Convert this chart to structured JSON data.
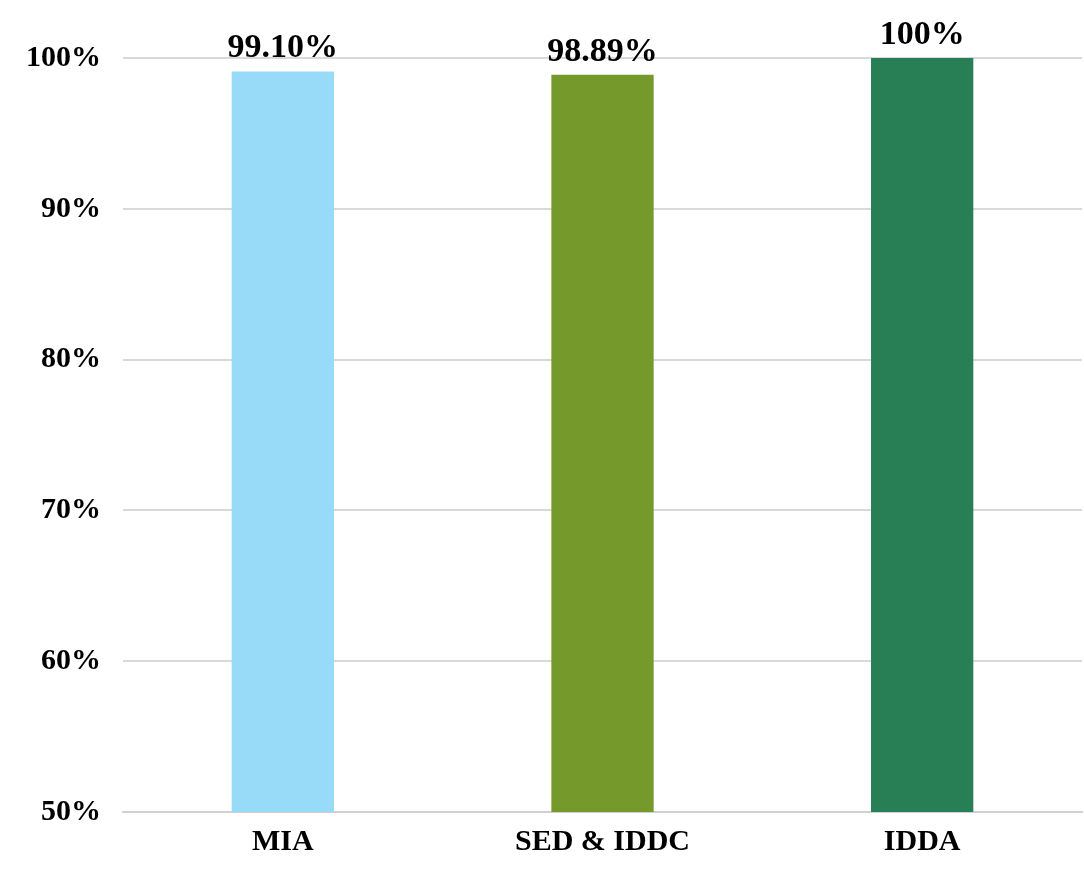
{
  "chart_data": {
    "type": "bar",
    "categories": [
      "MIA",
      "SED & IDDC",
      "IDDA"
    ],
    "values": [
      99.1,
      98.89,
      100
    ],
    "value_labels": [
      "99.10%",
      "98.89%",
      "100%"
    ],
    "colors": [
      "#97dbf9",
      "#76992b",
      "#287f55"
    ],
    "ylim": [
      50,
      100
    ],
    "yticks": [
      {
        "value": 50,
        "label": "50%"
      },
      {
        "value": 60,
        "label": "60%"
      },
      {
        "value": 70,
        "label": "70%"
      },
      {
        "value": 80,
        "label": "80%"
      },
      {
        "value": 90,
        "label": "90%"
      },
      {
        "value": 100,
        "label": "100%"
      }
    ],
    "grid": "y",
    "legend": false
  }
}
